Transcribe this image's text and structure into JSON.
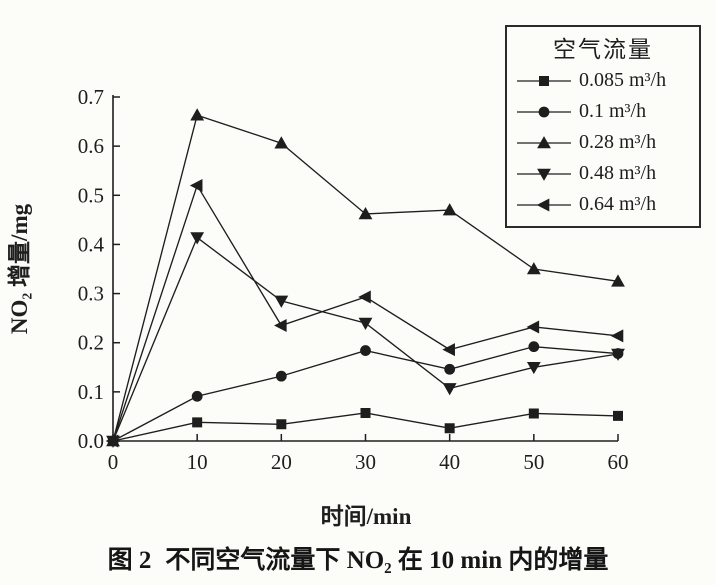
{
  "figure": {
    "caption_label": "图 2",
    "caption_text": "不同空气流量下 NO₂ 在 10 min 内的增量"
  },
  "chart_data": {
    "type": "line",
    "title": "",
    "xlabel": "时间/min",
    "ylabel": "NO₂ 增量/mg",
    "xlim": [
      0,
      60
    ],
    "ylim": [
      0.0,
      0.7
    ],
    "grid": false,
    "x_ticks": [
      0,
      10,
      20,
      30,
      40,
      50,
      60
    ],
    "x_tick_labels": [
      "0",
      "10",
      "20",
      "30",
      "40",
      "50",
      "60"
    ],
    "y_ticks": [
      0.0,
      0.1,
      0.2,
      0.3,
      0.4,
      0.5,
      0.6,
      0.7
    ],
    "y_tick_labels": [
      "0.0",
      "0.1",
      "0.2",
      "0.3",
      "0.4",
      "0.5",
      "0.6",
      "0.7"
    ],
    "legend": {
      "title": "空气流量",
      "position": "top-right"
    },
    "x": [
      0,
      10,
      20,
      30,
      40,
      50,
      60
    ],
    "series": [
      {
        "name": "0.085 m³/h",
        "marker": "square",
        "values": [
          0,
          0.038,
          0.034,
          0.057,
          0.026,
          0.056,
          0.051
        ]
      },
      {
        "name": "0.1 m³/h",
        "marker": "circle",
        "values": [
          0,
          0.091,
          0.132,
          0.184,
          0.146,
          0.192,
          0.178
        ]
      },
      {
        "name": "0.28 m³/h",
        "marker": "triangle-up",
        "values": [
          0,
          0.663,
          0.606,
          0.462,
          0.47,
          0.35,
          0.325
        ]
      },
      {
        "name": "0.48 m³/h",
        "marker": "triangle-down",
        "values": [
          0,
          0.414,
          0.285,
          0.24,
          0.107,
          0.15,
          0.177
        ]
      },
      {
        "name": "0.64 m³/h",
        "marker": "triangle-left",
        "values": [
          0,
          0.52,
          0.235,
          0.293,
          0.186,
          0.232,
          0.214
        ]
      }
    ],
    "ink_color": "#1e1e1e",
    "background_color": "#fcfcf9"
  }
}
